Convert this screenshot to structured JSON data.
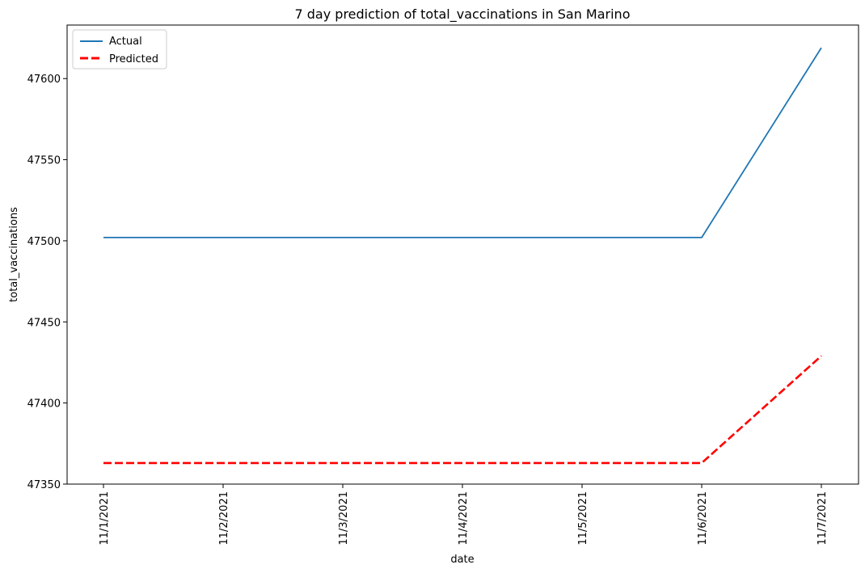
{
  "chart_data": {
    "type": "line",
    "title": "7 day prediction of total_vaccinations in San Marino",
    "xlabel": "date",
    "ylabel": "total_vaccinations",
    "categories": [
      "11/1/2021",
      "11/2/2021",
      "11/3/2021",
      "11/4/2021",
      "11/5/2021",
      "11/6/2021",
      "11/7/2021"
    ],
    "ylim": [
      47350,
      47633
    ],
    "yticks": [
      47350,
      47400,
      47450,
      47500,
      47550,
      47600
    ],
    "grid": false,
    "legend_position": "top-left",
    "series": [
      {
        "name": "Actual",
        "values": [
          47502,
          47502,
          47502,
          47502,
          47502,
          47502,
          47619
        ],
        "color": "#1f77b4",
        "style": "solid"
      },
      {
        "name": "Predicted",
        "values": [
          47363,
          47363,
          47363,
          47363,
          47363,
          47363,
          47429
        ],
        "color": "#ff0000",
        "style": "dashed"
      }
    ]
  }
}
